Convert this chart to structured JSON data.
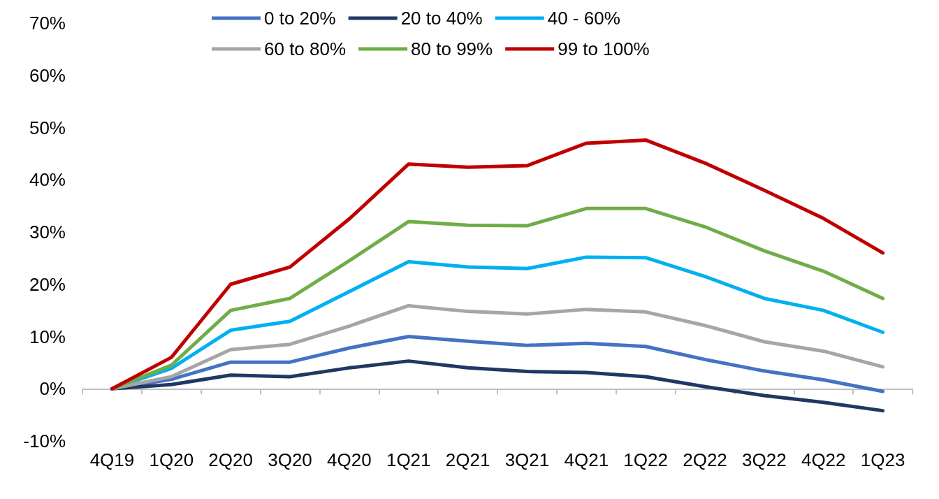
{
  "chart_data": {
    "type": "line",
    "categories": [
      "4Q19",
      "1Q20",
      "2Q20",
      "3Q20",
      "4Q20",
      "1Q21",
      "2Q21",
      "3Q21",
      "4Q21",
      "1Q22",
      "2Q22",
      "3Q22",
      "4Q22",
      "1Q23"
    ],
    "series": [
      {
        "name": "0 to 20%",
        "color": "#4472c4",
        "values": [
          0,
          1.8,
          5.1,
          5.1,
          7.8,
          10,
          9.1,
          8.3,
          8.7,
          8.1,
          5.6,
          3.4,
          1.7,
          -0.5
        ]
      },
      {
        "name": "20 to 40%",
        "color": "#1f3864",
        "values": [
          0,
          0.8,
          2.6,
          2.3,
          4,
          5.3,
          4,
          3.3,
          3.1,
          2.3,
          0.4,
          -1.3,
          -2.6,
          -4.2
        ]
      },
      {
        "name": "40 - 60%",
        "color": "#00b0f0",
        "values": [
          0,
          3.9,
          11.2,
          12.9,
          18.6,
          24.3,
          23.3,
          23,
          25.2,
          25.1,
          21.5,
          17.3,
          15,
          10.8
        ]
      },
      {
        "name": "60 to 80%",
        "color": "#a6a6a6",
        "values": [
          0,
          2.3,
          7.5,
          8.5,
          12,
          15.9,
          14.8,
          14.3,
          15.2,
          14.7,
          12.1,
          9,
          7.2,
          4.2
        ]
      },
      {
        "name": "80 to 99%",
        "color": "#70ad47",
        "values": [
          0,
          4.5,
          15,
          17.3,
          24.5,
          32,
          31.3,
          31.2,
          34.5,
          34.5,
          31,
          26.4,
          22.5,
          17.3
        ]
      },
      {
        "name": "99 to 100%",
        "color": "#c00000",
        "values": [
          0,
          6,
          20,
          23.3,
          32.5,
          43,
          42.4,
          42.7,
          47,
          47.6,
          43.2,
          38,
          32.6,
          26
        ]
      }
    ],
    "ylim": [
      -10,
      70
    ],
    "yticks": [
      {
        "value": -10,
        "label": "-10%"
      },
      {
        "value": 0,
        "label": "0%"
      },
      {
        "value": 10,
        "label": "10%"
      },
      {
        "value": 20,
        "label": "20%"
      },
      {
        "value": 30,
        "label": "30%"
      },
      {
        "value": 40,
        "label": "40%"
      },
      {
        "value": 50,
        "label": "50%"
      },
      {
        "value": 60,
        "label": "60%"
      },
      {
        "value": 70,
        "label": "70%"
      }
    ],
    "legend": "top",
    "marker": "none",
    "line_style": "solid"
  }
}
